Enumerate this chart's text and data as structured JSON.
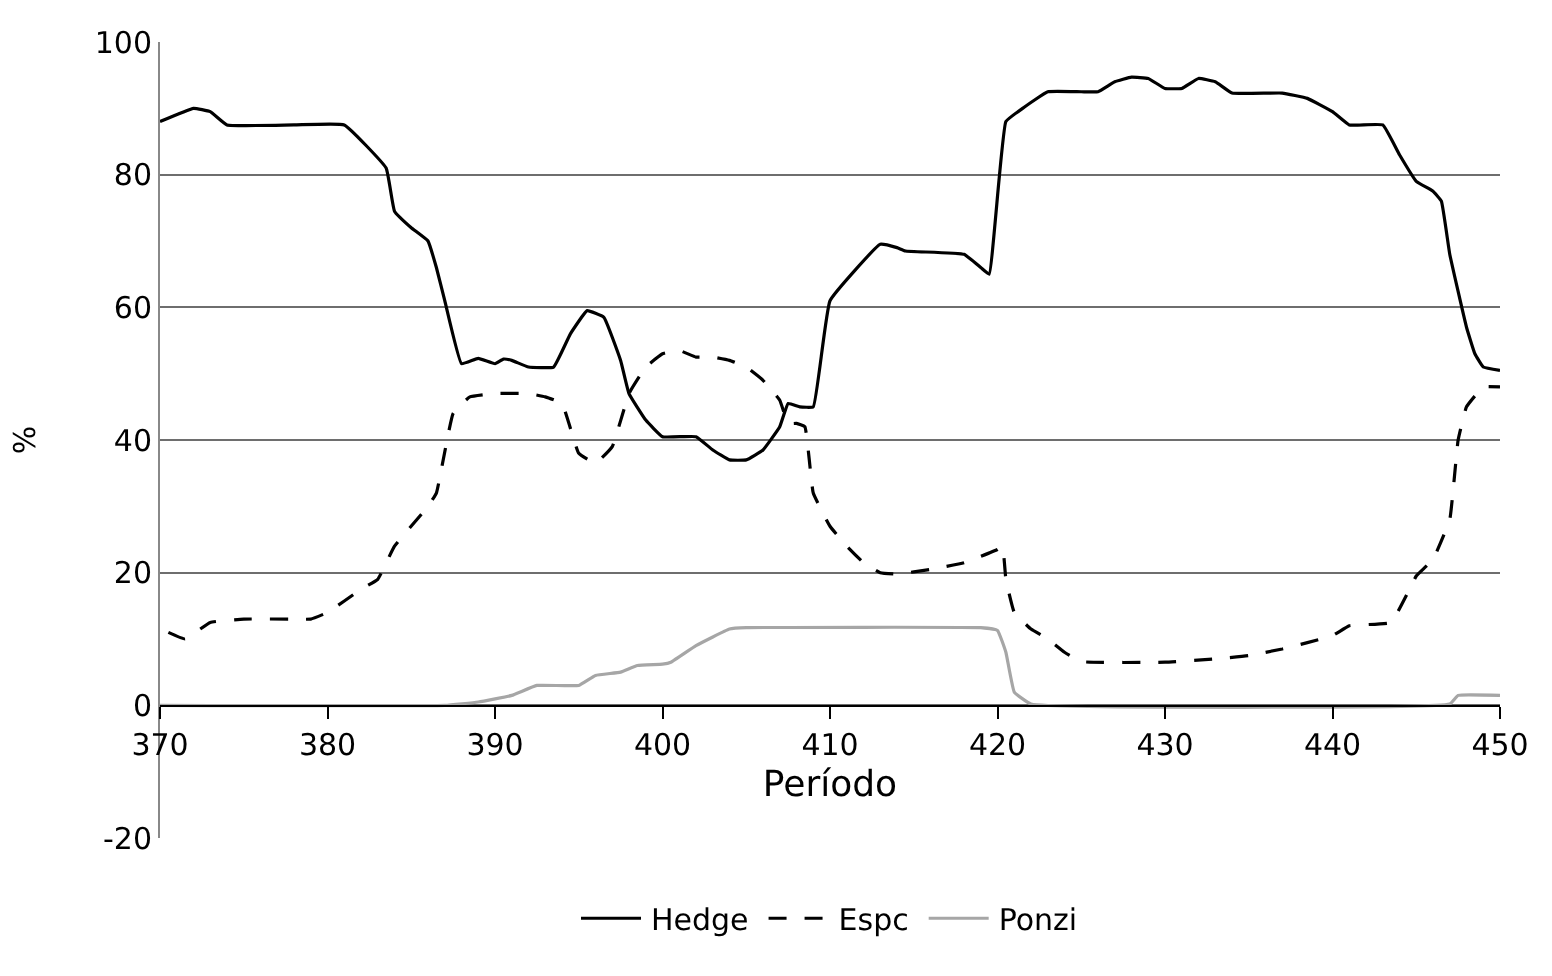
{
  "chart_data": {
    "type": "line",
    "xlabel": "Período",
    "ylabel": "%",
    "xlim": [
      370,
      450
    ],
    "xticks": [
      370,
      380,
      390,
      400,
      410,
      420,
      430,
      440,
      450
    ],
    "ylim": [
      -20,
      100
    ],
    "yticks": [
      -20,
      0,
      20,
      40,
      60,
      80,
      100
    ],
    "grid": "y",
    "legend": "bottom",
    "series": [
      {
        "name": "Hedge",
        "color": "#000000",
        "line_style": "solid",
        "x": [
          370,
          372,
          373,
          374,
          378,
          381,
          383.5,
          384,
          385,
          386,
          386.5,
          387,
          388,
          389,
          390,
          390.5,
          391,
          392,
          393.5,
          394.5,
          395.5,
          396.5,
          397.5,
          398,
          399,
          400,
          402,
          403,
          404,
          405,
          406,
          407,
          407.5,
          408.2,
          409,
          410,
          413,
          414,
          414.5,
          418,
          419,
          419.5,
          420.5,
          421.5,
          423,
          425,
          426,
          427,
          428,
          429,
          430,
          431,
          432,
          433,
          434,
          437,
          438.5,
          440,
          441,
          443,
          444,
          445,
          446,
          446.5,
          447,
          448,
          448.5,
          449,
          450
        ],
        "values": [
          88,
          90,
          89.5,
          87.5,
          87.5,
          87.5,
          81,
          74.5,
          72,
          70,
          66,
          61,
          51.5,
          52.3,
          51.5,
          52.2,
          52,
          51,
          51,
          56,
          59.5,
          58.5,
          52,
          47,
          43,
          40.5,
          40.5,
          38.5,
          37,
          37,
          38.5,
          42,
          45.5,
          45,
          45,
          61,
          69.5,
          69,
          68.5,
          68,
          66,
          65,
          88,
          90,
          92.5,
          92.5,
          92.5,
          94,
          94.7,
          94.5,
          93,
          93,
          94.5,
          94,
          92.3,
          92.3,
          91.5,
          89.5,
          87.5,
          87.5,
          83,
          79,
          77.5,
          76,
          68,
          57,
          53,
          51,
          50.5
        ]
      },
      {
        "name": "Espc",
        "color": "#000000",
        "line_style": "dashed",
        "x": [
          370.5,
          371.5,
          373,
          375,
          378,
          379,
          380,
          382,
          383,
          384,
          386,
          386.5,
          387.5,
          388.5,
          390,
          392,
          393,
          394,
          395,
          396,
          397,
          398,
          399,
          400,
          401,
          402,
          403,
          404,
          405,
          406,
          407,
          407.5,
          408,
          408.5,
          409,
          410,
          411,
          412,
          413,
          414,
          416,
          418,
          420,
          420.3,
          420.5,
          421,
          422,
          423,
          424,
          425,
          430,
          433,
          435,
          437,
          440,
          441,
          443.5,
          444.5,
          445,
          446,
          447,
          447.5,
          448,
          449,
          450
        ],
        "values": [
          11,
          10,
          12.5,
          13,
          13,
          13,
          14,
          17.5,
          19,
          24,
          30,
          32,
          44,
          46.5,
          47,
          47,
          46.5,
          45.5,
          38,
          36.5,
          39,
          47,
          51,
          53,
          53.5,
          52.5,
          52.5,
          52,
          51,
          49,
          46,
          42.5,
          42.5,
          42,
          32,
          27,
          24,
          21.5,
          20,
          19.8,
          20.5,
          21.5,
          23.5,
          24,
          19,
          14,
          11.5,
          10,
          8,
          6.6,
          6.5,
          7,
          7.5,
          8.5,
          10.5,
          12,
          12.5,
          17,
          19.5,
          22,
          28,
          40,
          45,
          48,
          48
        ]
      },
      {
        "name": "Ponzi",
        "color": "#a6a6a6",
        "line_style": "solid",
        "x": [
          370,
          387,
          389,
          391,
          392.5,
          395,
          396,
          397.5,
          398.5,
          400,
          400.5,
          402,
          404,
          405,
          419,
          420,
          420.5,
          421,
          422,
          447,
          447.5,
          450
        ],
        "values": [
          0,
          0,
          0.5,
          1.5,
          3,
          3,
          4.5,
          5,
          6,
          6.2,
          6.5,
          9,
          11.5,
          11.7,
          11.7,
          11.3,
          8,
          2,
          0.2,
          0.2,
          1.5,
          1.5
        ]
      }
    ]
  }
}
